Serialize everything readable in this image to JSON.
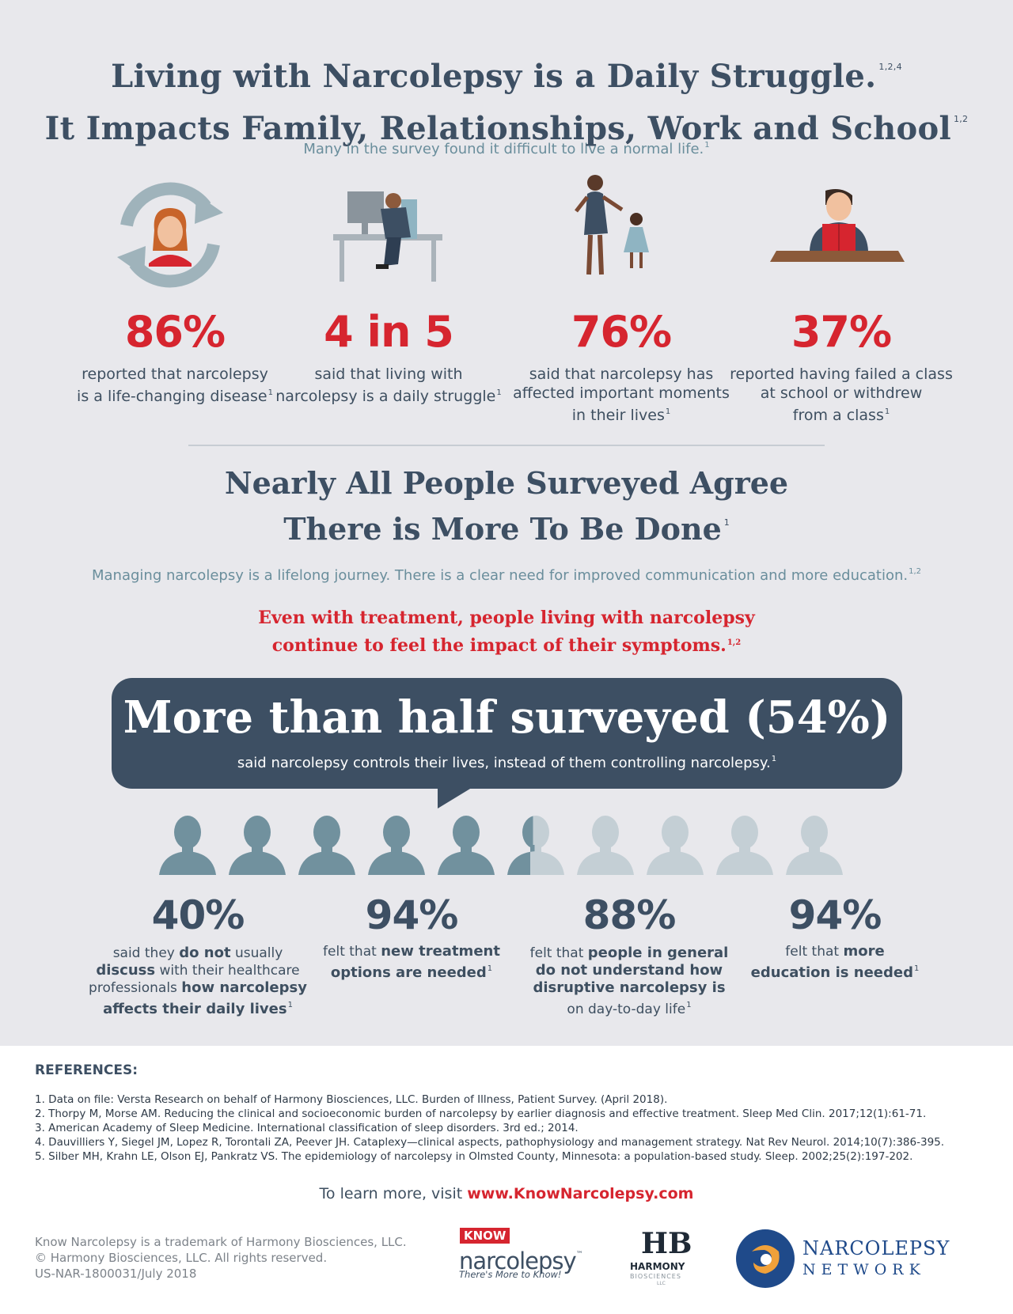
{
  "header": {
    "title_line1": "Living with Narcolepsy is a Daily Struggle.",
    "title_line1_sup": "1,2,4",
    "title_line2": "It Impacts Family, Relationships, Work and School",
    "title_line2_sup": "1,2",
    "subtitle": "Many in the survey found it difficult to live a normal life.",
    "subtitle_sup": "1"
  },
  "stats_top": [
    {
      "value": "86%",
      "line1": "reported that narcolepsy",
      "line2": "is a life-changing disease",
      "line3": "",
      "sup": "1",
      "icon": "life-change-icon"
    },
    {
      "value": "4 in 5",
      "line1": "said that living with",
      "line2": "narcolepsy is a daily struggle",
      "line3": "",
      "sup": "1",
      "icon": "tired-worker-icon"
    },
    {
      "value": "76%",
      "line1": "said that narcolepsy has",
      "line2": "affected important moments",
      "line3": "in their lives",
      "sup": "1",
      "icon": "mother-child-icon"
    },
    {
      "value": "37%",
      "line1": "reported having failed a class",
      "line2": "at school or withdrew",
      "line3": "from a class",
      "sup": "1",
      "icon": "student-reading-icon"
    }
  ],
  "section2": {
    "title_line1": "Nearly All People Surveyed Agree",
    "title_line2": "There is More To Be Done",
    "title_sup": "1",
    "subtitle": "Managing narcolepsy is a lifelong journey. There is a clear need for improved communication and more education.",
    "subtitle_sup": "1,2",
    "red_line1": "Even with treatment, people living with narcolepsy",
    "red_line2": "continue to feel the impact of their symptoms.",
    "red_sup": "1,2"
  },
  "bubble": {
    "headline": "More than half surveyed (54%)",
    "sub": "said narcolepsy controls their lives, instead of them controlling narcolepsy.",
    "sub_sup": "1",
    "filled_fraction": 0.54
  },
  "stats_bottom": [
    {
      "value": "40%",
      "p1": "said they ",
      "b1": "do not",
      "p2": " usually",
      "b2": "discuss",
      "p3": " with their healthcare",
      "p4": "professionals ",
      "b3": "how narcolepsy",
      "b4": "affects their daily lives",
      "sup": "1"
    },
    {
      "value": "94%",
      "p1": "felt that ",
      "b1": "new treatment",
      "b2": "options are needed",
      "sup": "1"
    },
    {
      "value": "88%",
      "p1": "felt that ",
      "b1": "people in general",
      "b2": "do not understand how",
      "b3": "disruptive narcolepsy is",
      "p2": "on day-to-day life",
      "sup": "1"
    },
    {
      "value": "94%",
      "p1": "felt that ",
      "b1": "more",
      "b2": "education is needed",
      "sup": "1"
    }
  ],
  "references": {
    "heading": "REFERENCES:",
    "items": [
      "1. Data on file: Versta Research on behalf of Harmony Biosciences, LLC. Burden of Illness, Patient Survey. (April 2018).",
      "2. Thorpy M, Morse AM. Reducing the clinical and socioeconomic burden of narcolepsy by earlier diagnosis and effective treatment. Sleep Med Clin. 2017;12(1):61-71.",
      "3. American Academy of Sleep Medicine. International classification of sleep disorders. 3rd ed.; 2014.",
      "4. Dauvilliers Y, Siegel JM, Lopez R, Torontali ZA, Peever JH. Cataplexy—clinical aspects, pathophysiology and management strategy. Nat Rev Neurol. 2014;10(7):386-395.",
      "5. Silber MH, Krahn LE, Olson EJ, Pankratz VS. The epidemiology of narcolepsy in Olmsted County, Minnesota: a population-based study. Sleep. 2002;25(2):197-202."
    ]
  },
  "visit": {
    "text": "To learn more, visit ",
    "link": "www.KnowNarcolepsy.com"
  },
  "footer": {
    "line1": "Know Narcolepsy is a trademark of Harmony Biosciences, LLC.",
    "line2": "© Harmony Biosciences, LLC. All rights reserved.",
    "line3": "US-NAR-1800031/July 2018"
  },
  "logos": {
    "know_top": "KNOW",
    "know_main": "narcolepsy",
    "know_tm": "™",
    "know_tag": "There's More to Know!",
    "harmony_mark": "HB",
    "harmony_name": "HARMONY",
    "harmony_sub": "BIOSCIENCES",
    "harmony_llc": "LLC",
    "network_line1": "NARCOLEPSY",
    "network_line2": "NETWORK"
  },
  "colors": {
    "accent_red": "#d6252f",
    "navy": "#3d4f63",
    "teal": "#6a8e9c",
    "icon_teal": "#71919e",
    "icon_faded": "#c4cfd5"
  }
}
